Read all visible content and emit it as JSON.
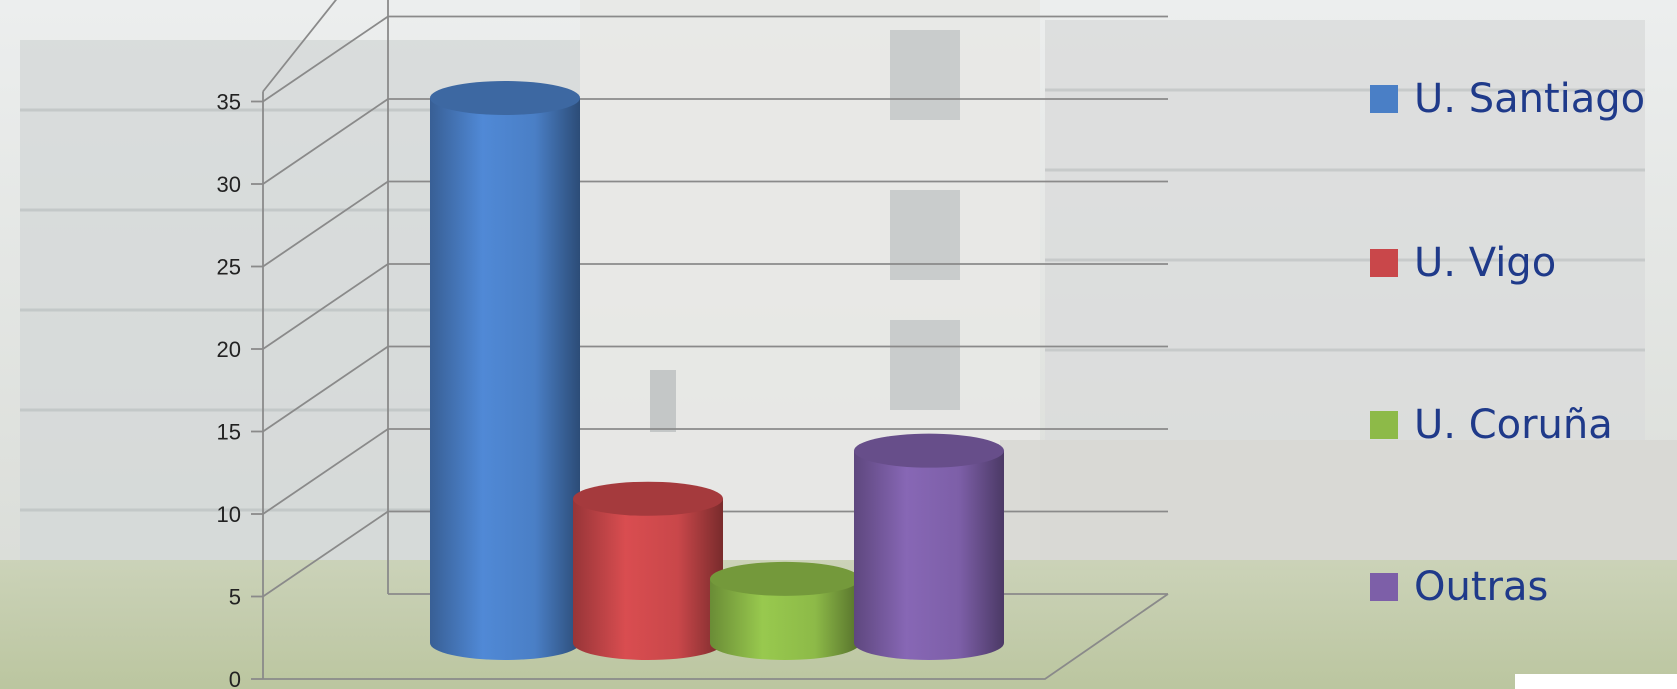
{
  "chart_data": {
    "type": "bar",
    "style": "3d-cylinder",
    "title": "",
    "xlabel": "",
    "ylabel": "",
    "ylim": [
      0,
      35
    ],
    "yticks": [
      0,
      5,
      10,
      15,
      20,
      25,
      30,
      35
    ],
    "grid": true,
    "legend_position": "right",
    "series": [
      {
        "name": "U. Santiago",
        "value": 34,
        "color": "#4a7fc6"
      },
      {
        "name": "U. Vigo",
        "value": 9,
        "color": "#c9474a"
      },
      {
        "name": "U. Coruña",
        "value": 4,
        "color": "#8dba48"
      },
      {
        "name": "Outras",
        "value": 12,
        "color": "#7d5fa8"
      }
    ]
  }
}
